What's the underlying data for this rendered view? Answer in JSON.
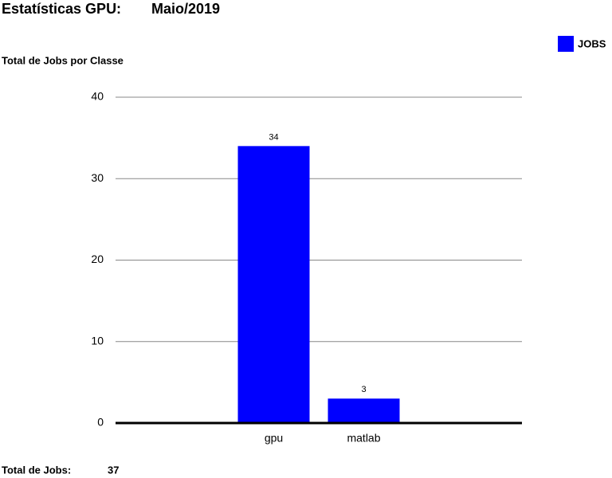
{
  "chart_data": {
    "type": "bar",
    "title": "Estatísticas GPU:",
    "period": "Maio/2019",
    "subtitle": "Total de Jobs por Classe",
    "categories": [
      "gpu",
      "matlab"
    ],
    "series": [
      {
        "name": "JOBS",
        "color": "#0000ff",
        "values": [
          34,
          3
        ]
      }
    ],
    "ylim": [
      0,
      40
    ],
    "yticks": [
      0,
      10,
      20,
      30,
      40
    ],
    "grid": true,
    "show_value_labels": true,
    "legend": "top-right",
    "footer": {
      "label": "Total de Jobs:",
      "value": 37
    }
  }
}
